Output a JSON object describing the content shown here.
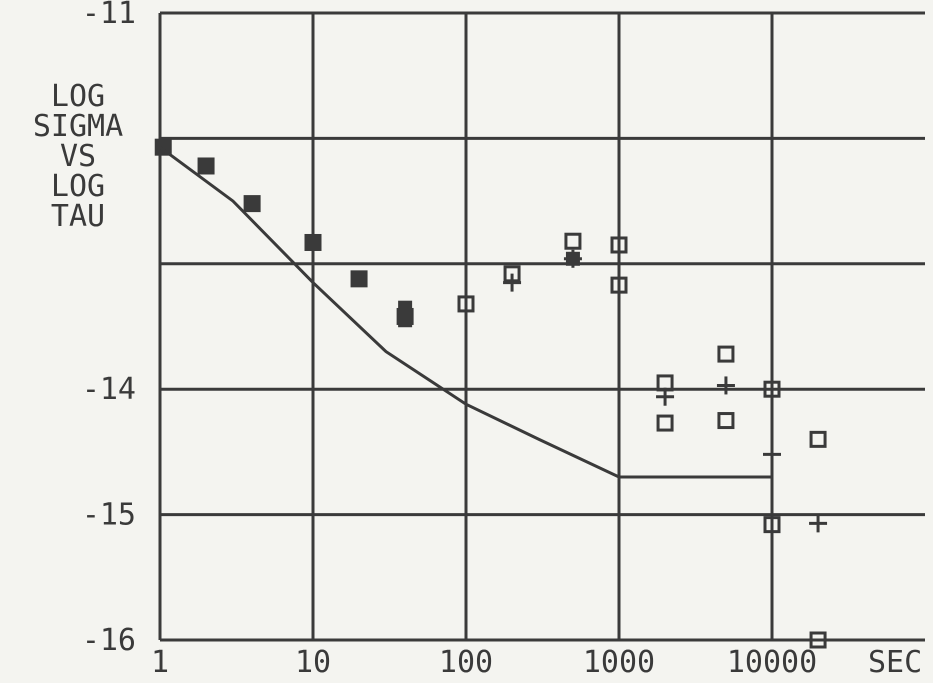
{
  "chart_data": {
    "type": "scatter",
    "title_lines": [
      "LOG",
      "SIGMA",
      "VS",
      "LOG",
      "TAU"
    ],
    "x_unit_label": "SEC",
    "x_scale": "log",
    "xlim": [
      1,
      100000
    ],
    "ylim": [
      -16,
      -11
    ],
    "x_ticks": [
      {
        "value": 1,
        "label": "1"
      },
      {
        "value": 10,
        "label": "10"
      },
      {
        "value": 100,
        "label": "100"
      },
      {
        "value": 1000,
        "label": "1000"
      },
      {
        "value": 10000,
        "label": "10000"
      }
    ],
    "y_ticks": [
      {
        "value": -11,
        "label": "-11"
      },
      {
        "value": -14,
        "label": "-14"
      },
      {
        "value": -15,
        "label": "-15"
      },
      {
        "value": -16,
        "label": "-16"
      }
    ],
    "grid": true,
    "colors": {
      "ink": "#3a3a3a",
      "paper": "#f4f4f0"
    },
    "series": [
      {
        "marker": "square",
        "points": [
          {
            "x": 1.05,
            "y": -12.07
          },
          {
            "x": 2,
            "y": -12.22
          },
          {
            "x": 4,
            "y": -12.52
          },
          {
            "x": 10,
            "y": -12.83
          },
          {
            "x": 20,
            "y": -13.12
          },
          {
            "x": 40,
            "y": -13.42
          },
          {
            "x": 100,
            "y": -13.32
          },
          {
            "x": 200,
            "y": -13.08
          },
          {
            "x": 500,
            "y": -12.82
          },
          {
            "x": 1000,
            "y": -12.85
          },
          {
            "x": 1000,
            "y": -13.17
          },
          {
            "x": 2000,
            "y": -13.95
          },
          {
            "x": 2000,
            "y": -14.27
          },
          {
            "x": 5000,
            "y": -13.72
          },
          {
            "x": 5000,
            "y": -14.25
          },
          {
            "x": 10000,
            "y": -14.0
          },
          {
            "x": 10000,
            "y": -15.08
          },
          {
            "x": 20000,
            "y": -14.4
          },
          {
            "x": 20000,
            "y": -16.0
          }
        ]
      },
      {
        "marker": "filled-square",
        "points": [
          {
            "x": 1.05,
            "y": -12.07
          },
          {
            "x": 2,
            "y": -12.22
          },
          {
            "x": 4,
            "y": -12.52
          },
          {
            "x": 10,
            "y": -12.83
          },
          {
            "x": 20,
            "y": -13.12
          },
          {
            "x": 40,
            "y": -13.45
          },
          {
            "x": 40,
            "y": -13.35
          },
          {
            "x": 500,
            "y": -12.96
          }
        ]
      },
      {
        "marker": "plus",
        "points": [
          {
            "x": 200,
            "y": -13.15
          },
          {
            "x": 500,
            "y": -12.96
          },
          {
            "x": 2000,
            "y": -14.06
          },
          {
            "x": 5000,
            "y": -13.97
          },
          {
            "x": 10000,
            "y": -14.52
          },
          {
            "x": 20000,
            "y": -15.07
          }
        ]
      },
      {
        "marker": "line",
        "points": [
          {
            "x": 1,
            "y": -12.07
          },
          {
            "x": 3,
            "y": -12.5
          },
          {
            "x": 10,
            "y": -13.15
          },
          {
            "x": 30,
            "y": -13.7
          },
          {
            "x": 100,
            "y": -14.12
          },
          {
            "x": 300,
            "y": -14.4
          },
          {
            "x": 1000,
            "y": -14.7
          },
          {
            "x": 10000,
            "y": -14.7
          },
          {
            "x": 10000,
            "y": -16.0
          }
        ]
      }
    ]
  }
}
